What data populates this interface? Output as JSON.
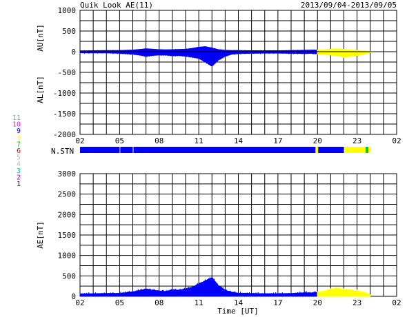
{
  "header": {
    "title": "Quik Look AE(11)",
    "date_range": "2013/09/04-2013/09/05"
  },
  "colors": {
    "primary": "#0000ff",
    "secondary": "#ffff00",
    "station_green": "#00cc00",
    "grid": "#000000"
  },
  "station_legend": {
    "label": "N.STN",
    "numbers": [
      {
        "text": "11",
        "color": "#00d8d8"
      },
      {
        "text": "10",
        "color": "#ff00ff"
      },
      {
        "text": "9",
        "color": "#0000ff"
      },
      {
        "text": "8",
        "color": "#ffff66"
      },
      {
        "text": "7",
        "color": "#00cc00"
      },
      {
        "text": "6",
        "color": "#ff0000"
      },
      {
        "text": "5",
        "color": "#bbbbbb"
      },
      {
        "text": "4",
        "color": "#bbbbbb"
      },
      {
        "text": "3",
        "color": "#00c0c0"
      },
      {
        "text": "2",
        "color": "#cc00cc"
      },
      {
        "text": "1",
        "color": "#0000cc"
      }
    ],
    "segments": [
      {
        "start": 2,
        "end": 5,
        "color": "#0000ff"
      },
      {
        "start": 5.05,
        "end": 6.0,
        "color": "#0000ff"
      },
      {
        "start": 6.05,
        "end": 19.85,
        "color": "#0000ff"
      },
      {
        "start": 19.85,
        "end": 20.05,
        "color": "#ffff00"
      },
      {
        "start": 20.05,
        "end": 22.0,
        "color": "#0000ff"
      },
      {
        "start": 22.0,
        "end": 23.65,
        "color": "#ffff00"
      },
      {
        "start": 23.65,
        "end": 23.85,
        "color": "#00cc00"
      },
      {
        "start": 23.85,
        "end": 24.0,
        "color": "#ffff00"
      }
    ]
  },
  "chart_data": [
    {
      "type": "area",
      "name": "AU-AL",
      "ylabel_top": "AU[nT]",
      "ylabel_bottom": "AL[nT]",
      "xlim": [
        2,
        26
      ],
      "ylim": [
        -2000,
        1000
      ],
      "ytick_values": [
        1000,
        500,
        0,
        -500,
        -1000,
        -1500,
        -2000
      ],
      "yticks": [
        "1000",
        "500",
        "0",
        "-500",
        "-1000",
        "-1500",
        "-2000"
      ],
      "xtick_values": [
        2,
        5,
        8,
        11,
        14,
        17,
        20,
        23,
        26
      ],
      "xticks": [
        "02",
        "05",
        "08",
        "11",
        "14",
        "17",
        "20",
        "23",
        "02"
      ],
      "grid": true,
      "x": [
        2,
        3,
        4,
        5,
        5.5,
        6,
        6.5,
        7,
        7.5,
        8,
        8.5,
        9,
        9.5,
        10,
        10.5,
        11,
        11.5,
        12,
        12.5,
        13,
        13.5,
        14,
        15,
        16,
        17,
        18,
        19,
        19.5,
        20,
        20.5,
        21,
        21.5,
        22,
        22.5,
        23,
        23.5,
        24
      ],
      "au": [
        20,
        25,
        30,
        30,
        35,
        40,
        55,
        70,
        60,
        50,
        45,
        50,
        55,
        60,
        80,
        110,
        120,
        90,
        50,
        35,
        30,
        30,
        25,
        25,
        25,
        30,
        35,
        40,
        40,
        45,
        60,
        70,
        55,
        40,
        30,
        20,
        10
      ],
      "al": [
        -25,
        -30,
        -30,
        -40,
        -50,
        -60,
        -80,
        -110,
        -90,
        -80,
        -80,
        -100,
        -90,
        -110,
        -130,
        -160,
        -250,
        -350,
        -200,
        -110,
        -60,
        -45,
        -40,
        -35,
        -35,
        -40,
        -45,
        -40,
        -50,
        -60,
        -80,
        -90,
        -130,
        -110,
        -90,
        -60,
        -20
      ],
      "yellow_from": 19.85
    },
    {
      "type": "area",
      "name": "AE",
      "ylabel": "AE[nT]",
      "xlabel": "Time [UT]",
      "xlim": [
        2,
        26
      ],
      "ylim": [
        0,
        3000
      ],
      "ytick_values": [
        3000,
        2500,
        2000,
        1500,
        1000,
        500,
        0
      ],
      "yticks": [
        "3000",
        "2500",
        "2000",
        "1500",
        "1000",
        "500",
        "0"
      ],
      "xtick_values": [
        2,
        5,
        8,
        11,
        14,
        17,
        20,
        23,
        26
      ],
      "xticks": [
        "02",
        "05",
        "08",
        "11",
        "14",
        "17",
        "20",
        "23",
        "02"
      ],
      "grid": true,
      "x": [
        2,
        3,
        4,
        5,
        5.5,
        6,
        6.5,
        7,
        7.5,
        8,
        8.5,
        9,
        9.5,
        10,
        10.5,
        11,
        11.5,
        12,
        12.5,
        13,
        13.5,
        14,
        15,
        16,
        17,
        18,
        19,
        19.5,
        20,
        20.5,
        21,
        21.5,
        22,
        22.5,
        23,
        23.5,
        24
      ],
      "ae": [
        60,
        65,
        70,
        75,
        90,
        110,
        140,
        180,
        150,
        130,
        120,
        160,
        150,
        180,
        220,
        300,
        380,
        460,
        260,
        150,
        100,
        80,
        70,
        65,
        65,
        70,
        90,
        85,
        95,
        120,
        170,
        200,
        160,
        150,
        130,
        90,
        40
      ],
      "yellow_from": 19.85
    }
  ]
}
